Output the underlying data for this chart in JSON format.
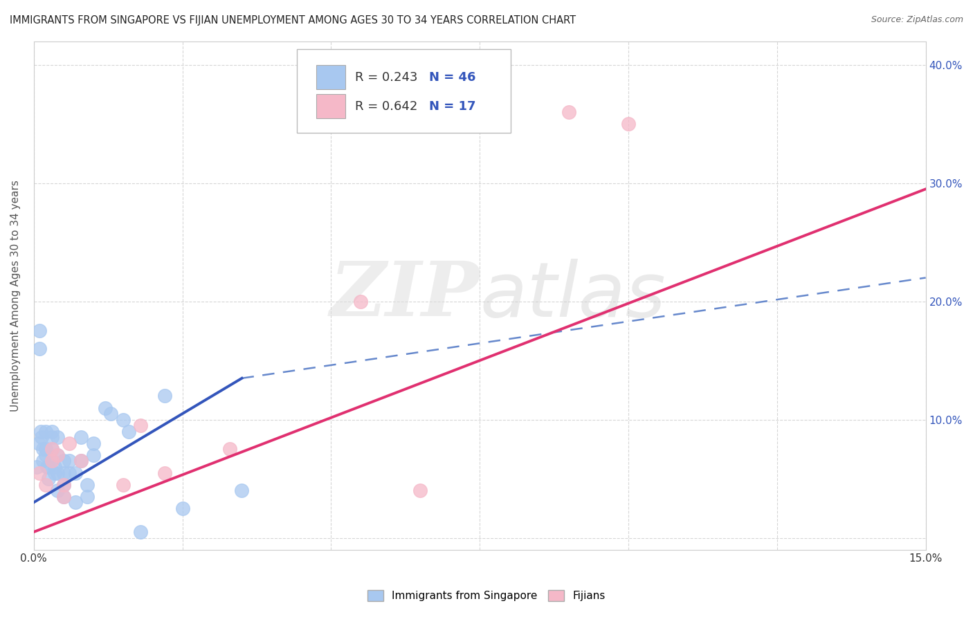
{
  "title": "IMMIGRANTS FROM SINGAPORE VS FIJIAN UNEMPLOYMENT AMONG AGES 30 TO 34 YEARS CORRELATION CHART",
  "source": "Source: ZipAtlas.com",
  "ylabel": "Unemployment Among Ages 30 to 34 years",
  "xlim": [
    0.0,
    0.15
  ],
  "ylim": [
    -0.01,
    0.42
  ],
  "xticks": [
    0.0,
    0.025,
    0.05,
    0.075,
    0.1,
    0.125,
    0.15
  ],
  "yticks": [
    0.0,
    0.1,
    0.2,
    0.3,
    0.4
  ],
  "right_ytick_labels": [
    "",
    "10.0%",
    "20.0%",
    "30.0%",
    "40.0%"
  ],
  "xtick_labels": [
    "0.0%",
    "",
    "",
    "",
    "",
    "",
    "15.0%"
  ],
  "blue_R": 0.243,
  "blue_N": 46,
  "pink_R": 0.642,
  "pink_N": 17,
  "blue_color": "#a8c8f0",
  "pink_color": "#f5b8c8",
  "blue_line_color": "#3355bb",
  "pink_line_color": "#e03070",
  "blue_dash_color": "#6688cc",
  "watermark_zip": "ZIP",
  "watermark_atlas": "atlas",
  "blue_scatter_x": [
    0.0005,
    0.0008,
    0.001,
    0.001,
    0.0012,
    0.0013,
    0.0015,
    0.0015,
    0.002,
    0.002,
    0.002,
    0.0022,
    0.0025,
    0.0025,
    0.003,
    0.003,
    0.003,
    0.003,
    0.0035,
    0.0035,
    0.004,
    0.004,
    0.004,
    0.004,
    0.005,
    0.005,
    0.005,
    0.005,
    0.006,
    0.006,
    0.007,
    0.007,
    0.008,
    0.008,
    0.009,
    0.009,
    0.01,
    0.01,
    0.012,
    0.013,
    0.015,
    0.016,
    0.018,
    0.022,
    0.025,
    0.035
  ],
  "blue_scatter_y": [
    0.06,
    0.08,
    0.175,
    0.16,
    0.09,
    0.085,
    0.075,
    0.065,
    0.09,
    0.075,
    0.07,
    0.06,
    0.06,
    0.05,
    0.09,
    0.085,
    0.075,
    0.065,
    0.06,
    0.055,
    0.085,
    0.07,
    0.055,
    0.04,
    0.065,
    0.055,
    0.045,
    0.035,
    0.065,
    0.055,
    0.055,
    0.03,
    0.085,
    0.065,
    0.045,
    0.035,
    0.08,
    0.07,
    0.11,
    0.105,
    0.1,
    0.09,
    0.005,
    0.12,
    0.025,
    0.04
  ],
  "pink_scatter_x": [
    0.001,
    0.002,
    0.003,
    0.003,
    0.004,
    0.005,
    0.005,
    0.006,
    0.008,
    0.015,
    0.018,
    0.022,
    0.033,
    0.055,
    0.065,
    0.09,
    0.1
  ],
  "pink_scatter_y": [
    0.055,
    0.045,
    0.075,
    0.065,
    0.07,
    0.045,
    0.035,
    0.08,
    0.065,
    0.045,
    0.095,
    0.055,
    0.075,
    0.2,
    0.04,
    0.36,
    0.35
  ],
  "blue_solid_trend_x": [
    0.0,
    0.035
  ],
  "blue_solid_trend_y": [
    0.03,
    0.135
  ],
  "blue_dash_trend_x": [
    0.035,
    0.15
  ],
  "blue_dash_trend_y": [
    0.135,
    0.22
  ],
  "pink_trend_x": [
    0.0,
    0.15
  ],
  "pink_trend_y": [
    0.005,
    0.295
  ],
  "background_color": "#ffffff",
  "grid_color": "#cccccc"
}
